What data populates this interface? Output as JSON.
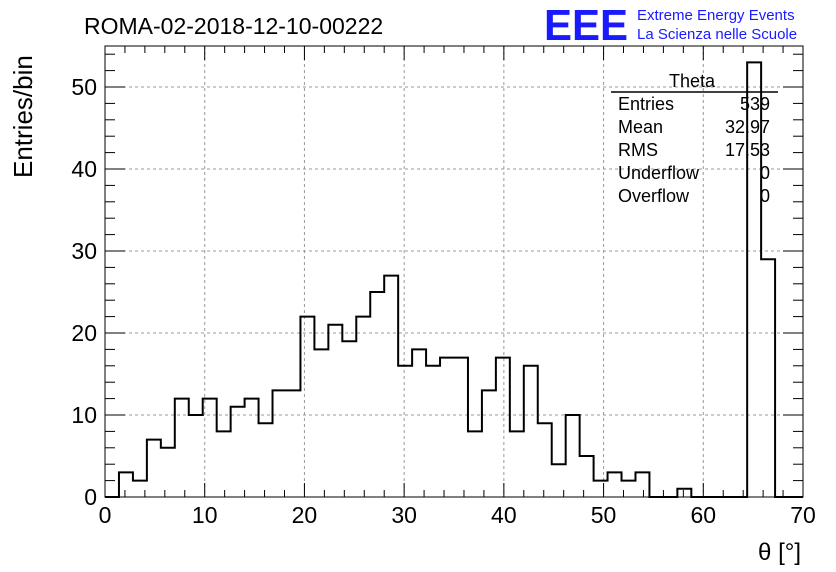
{
  "chart_data": {
    "type": "bar",
    "title": "ROMA-02-2018-12-10-00222",
    "xlabel": "θ [°]",
    "ylabel": "Entries/bin",
    "xlim": [
      0,
      70
    ],
    "ylim": [
      0,
      55
    ],
    "x_ticks": [
      0,
      10,
      20,
      30,
      40,
      50,
      60,
      70
    ],
    "y_ticks": [
      0,
      10,
      20,
      30,
      40,
      50
    ],
    "grid": true,
    "bin_width": 1.4,
    "bin_start": 0,
    "series": [
      {
        "values": [
          0,
          3,
          2,
          7,
          6,
          12,
          10,
          12,
          8,
          11,
          12,
          9,
          13,
          13,
          22,
          18,
          21,
          19,
          22,
          25,
          27,
          16,
          18,
          16,
          17,
          17,
          8,
          13,
          17,
          8,
          16,
          9,
          4,
          10,
          5,
          2,
          3,
          2,
          3,
          0,
          0,
          1,
          0,
          0,
          0,
          0,
          53,
          29,
          0,
          0
        ]
      }
    ],
    "stats": {
      "name": "Theta",
      "rows": [
        {
          "label": "Entries",
          "value": "539"
        },
        {
          "label": "Mean",
          "value": "32.97"
        },
        {
          "label": "RMS",
          "value": "17.53"
        },
        {
          "label": "Underflow",
          "value": "0"
        },
        {
          "label": "Overflow",
          "value": "0"
        }
      ]
    }
  },
  "logo": {
    "mark": "EEE",
    "line1": "Extreme Energy Events",
    "line2": "La Scienza nelle Scuole",
    "color": "#1a1aff"
  }
}
